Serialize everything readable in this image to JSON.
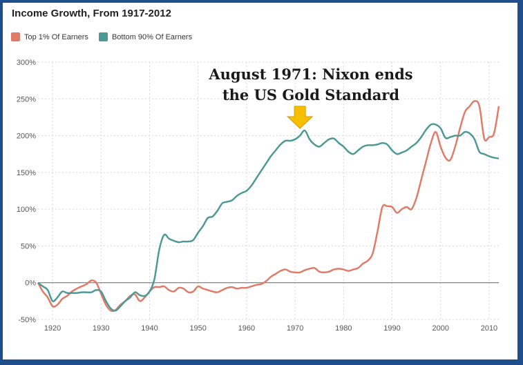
{
  "chart_data": {
    "type": "line",
    "title": "Income Growth, From 1917-2012",
    "xlabel": "",
    "ylabel": "",
    "xlim": [
      1917,
      2012
    ],
    "ylim": [
      -50,
      300
    ],
    "y_ticks": [
      "300%",
      "250%",
      "200%",
      "150%",
      "100%",
      "50%",
      "0%",
      "-50%"
    ],
    "y_tick_values": [
      300,
      250,
      200,
      150,
      100,
      50,
      0,
      -50
    ],
    "x_ticks": [
      "1920",
      "1930",
      "1940",
      "1950",
      "1960",
      "1970",
      "1980",
      "1990",
      "2000",
      "2010"
    ],
    "x_tick_values": [
      1920,
      1930,
      1940,
      1950,
      1960,
      1970,
      1980,
      1990,
      2000,
      2010
    ],
    "grid": true,
    "legend_position": "top-left",
    "annotation": {
      "line1": "August 1971: Nixon ends",
      "line2": "the US Gold Standard",
      "year": 1971
    },
    "series": [
      {
        "name": "Top 1% Of Earners",
        "color": "#e07b68",
        "x": [
          1917,
          1918,
          1919,
          1920,
          1921,
          1922,
          1923,
          1924,
          1925,
          1926,
          1927,
          1928,
          1929,
          1930,
          1931,
          1932,
          1933,
          1934,
          1935,
          1936,
          1937,
          1938,
          1939,
          1940,
          1941,
          1942,
          1943,
          1944,
          1945,
          1946,
          1947,
          1948,
          1949,
          1950,
          1951,
          1952,
          1953,
          1954,
          1955,
          1956,
          1957,
          1958,
          1959,
          1960,
          1961,
          1962,
          1963,
          1964,
          1965,
          1966,
          1967,
          1968,
          1969,
          1970,
          1971,
          1972,
          1973,
          1974,
          1975,
          1976,
          1977,
          1978,
          1979,
          1980,
          1981,
          1982,
          1983,
          1984,
          1985,
          1986,
          1987,
          1988,
          1989,
          1990,
          1991,
          1992,
          1993,
          1994,
          1995,
          1996,
          1997,
          1998,
          1999,
          2000,
          2001,
          2002,
          2003,
          2004,
          2005,
          2006,
          2007,
          2008,
          2009,
          2010,
          2011,
          2012
        ],
        "values": [
          0,
          -12,
          -20,
          -32,
          -30,
          -22,
          -18,
          -12,
          -8,
          -5,
          -2,
          3,
          0,
          -15,
          -30,
          -38,
          -37,
          -30,
          -25,
          -18,
          -16,
          -25,
          -20,
          -12,
          -6,
          -6,
          -5,
          -10,
          -12,
          -7,
          -8,
          -13,
          -12,
          -5,
          -8,
          -10,
          -12,
          -13,
          -10,
          -7,
          -6,
          -8,
          -7,
          -7,
          -5,
          -3,
          -2,
          2,
          8,
          12,
          16,
          18,
          15,
          14,
          14,
          17,
          19,
          20,
          15,
          14,
          15,
          18,
          19,
          18,
          16,
          18,
          20,
          26,
          30,
          40,
          70,
          103,
          104,
          103,
          95,
          100,
          103,
          100,
          115,
          140,
          165,
          190,
          205,
          185,
          170,
          167,
          185,
          210,
          232,
          240,
          247,
          240,
          196,
          198,
          203,
          240
        ]
      },
      {
        "name": "Bottom 90% Of Earners",
        "color": "#4d9a94",
        "x": [
          1917,
          1918,
          1919,
          1920,
          1921,
          1922,
          1923,
          1924,
          1925,
          1926,
          1927,
          1928,
          1929,
          1930,
          1931,
          1932,
          1933,
          1934,
          1935,
          1936,
          1937,
          1938,
          1939,
          1940,
          1941,
          1942,
          1943,
          1944,
          1945,
          1946,
          1947,
          1948,
          1949,
          1950,
          1951,
          1952,
          1953,
          1954,
          1955,
          1956,
          1957,
          1958,
          1959,
          1960,
          1961,
          1962,
          1963,
          1964,
          1965,
          1966,
          1967,
          1968,
          1969,
          1970,
          1971,
          1972,
          1973,
          1974,
          1975,
          1976,
          1977,
          1978,
          1979,
          1980,
          1981,
          1982,
          1983,
          1984,
          1985,
          1986,
          1987,
          1988,
          1989,
          1990,
          1991,
          1992,
          1993,
          1994,
          1995,
          1996,
          1997,
          1998,
          1999,
          2000,
          2001,
          2002,
          2003,
          2004,
          2005,
          2006,
          2007,
          2008,
          2009,
          2010,
          2011,
          2012
        ],
        "values": [
          0,
          -5,
          -10,
          -25,
          -20,
          -12,
          -14,
          -14,
          -14,
          -13,
          -13,
          -13,
          -10,
          -12,
          -25,
          -35,
          -38,
          -32,
          -25,
          -20,
          -13,
          -17,
          -18,
          -12,
          5,
          45,
          65,
          60,
          57,
          55,
          56,
          56,
          58,
          68,
          77,
          88,
          90,
          98,
          108,
          110,
          112,
          118,
          122,
          125,
          132,
          142,
          152,
          162,
          172,
          180,
          188,
          193,
          193,
          195,
          200,
          207,
          195,
          188,
          185,
          190,
          195,
          196,
          190,
          185,
          178,
          175,
          180,
          185,
          187,
          187,
          188,
          190,
          188,
          180,
          175,
          177,
          180,
          185,
          190,
          198,
          208,
          215,
          215,
          210,
          197,
          198,
          200,
          200,
          205,
          203,
          195,
          178,
          175,
          172,
          170,
          169
        ]
      }
    ]
  }
}
